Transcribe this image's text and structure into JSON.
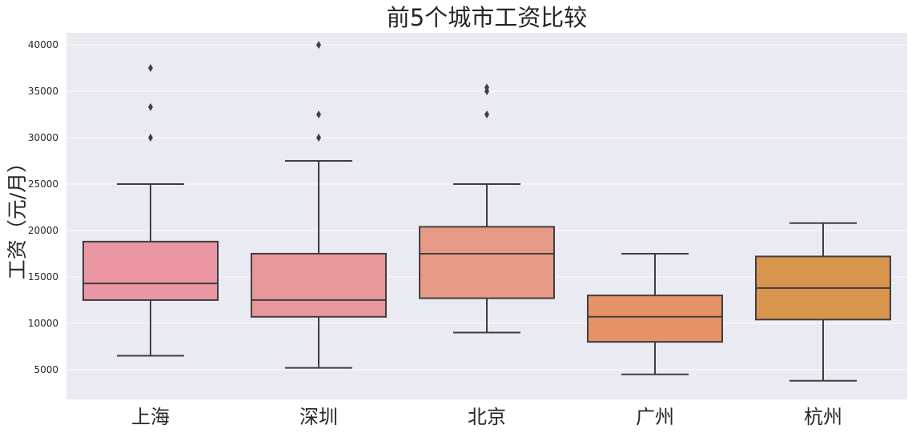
{
  "chart_data": {
    "type": "box",
    "title": "前5个城市工资比较",
    "xlabel": "",
    "ylabel": "工资（元/月）",
    "ylim": [
      1800,
      41300
    ],
    "yticks": [
      5000,
      10000,
      15000,
      20000,
      25000,
      30000,
      35000,
      40000
    ],
    "grid": true,
    "categories": [
      "上海",
      "深圳",
      "北京",
      "广州",
      "杭州"
    ],
    "boxes": [
      {
        "category": "上海",
        "whisker_low": 6500,
        "q1": 12500,
        "median": 14300,
        "q3": 18800,
        "whisker_high": 25000,
        "outliers": [
          30000,
          33300,
          37500
        ],
        "color": "#ea96a3"
      },
      {
        "category": "深圳",
        "whisker_low": 5200,
        "q1": 10700,
        "median": 12500,
        "q3": 17500,
        "whisker_high": 27500,
        "outliers": [
          30000,
          32500,
          40000
        ],
        "color": "#e8979b"
      },
      {
        "category": "北京",
        "whisker_low": 9000,
        "q1": 12700,
        "median": 17500,
        "q3": 20400,
        "whisker_high": 25000,
        "outliers": [
          32500,
          35000,
          35400
        ],
        "color": "#e69a86"
      },
      {
        "category": "广州",
        "whisker_low": 4500,
        "q1": 8000,
        "median": 10700,
        "q3": 13000,
        "whisker_high": 17500,
        "outliers": [],
        "color": "#e69268"
      },
      {
        "category": "杭州",
        "whisker_low": 3800,
        "q1": 10400,
        "median": 13800,
        "q3": 17200,
        "whisker_high": 20800,
        "outliers": [],
        "color": "#d8954e"
      }
    ],
    "colors": {
      "background": "#eaeaf2",
      "grid": "#ffffff",
      "line": "#3f3f3f"
    }
  }
}
